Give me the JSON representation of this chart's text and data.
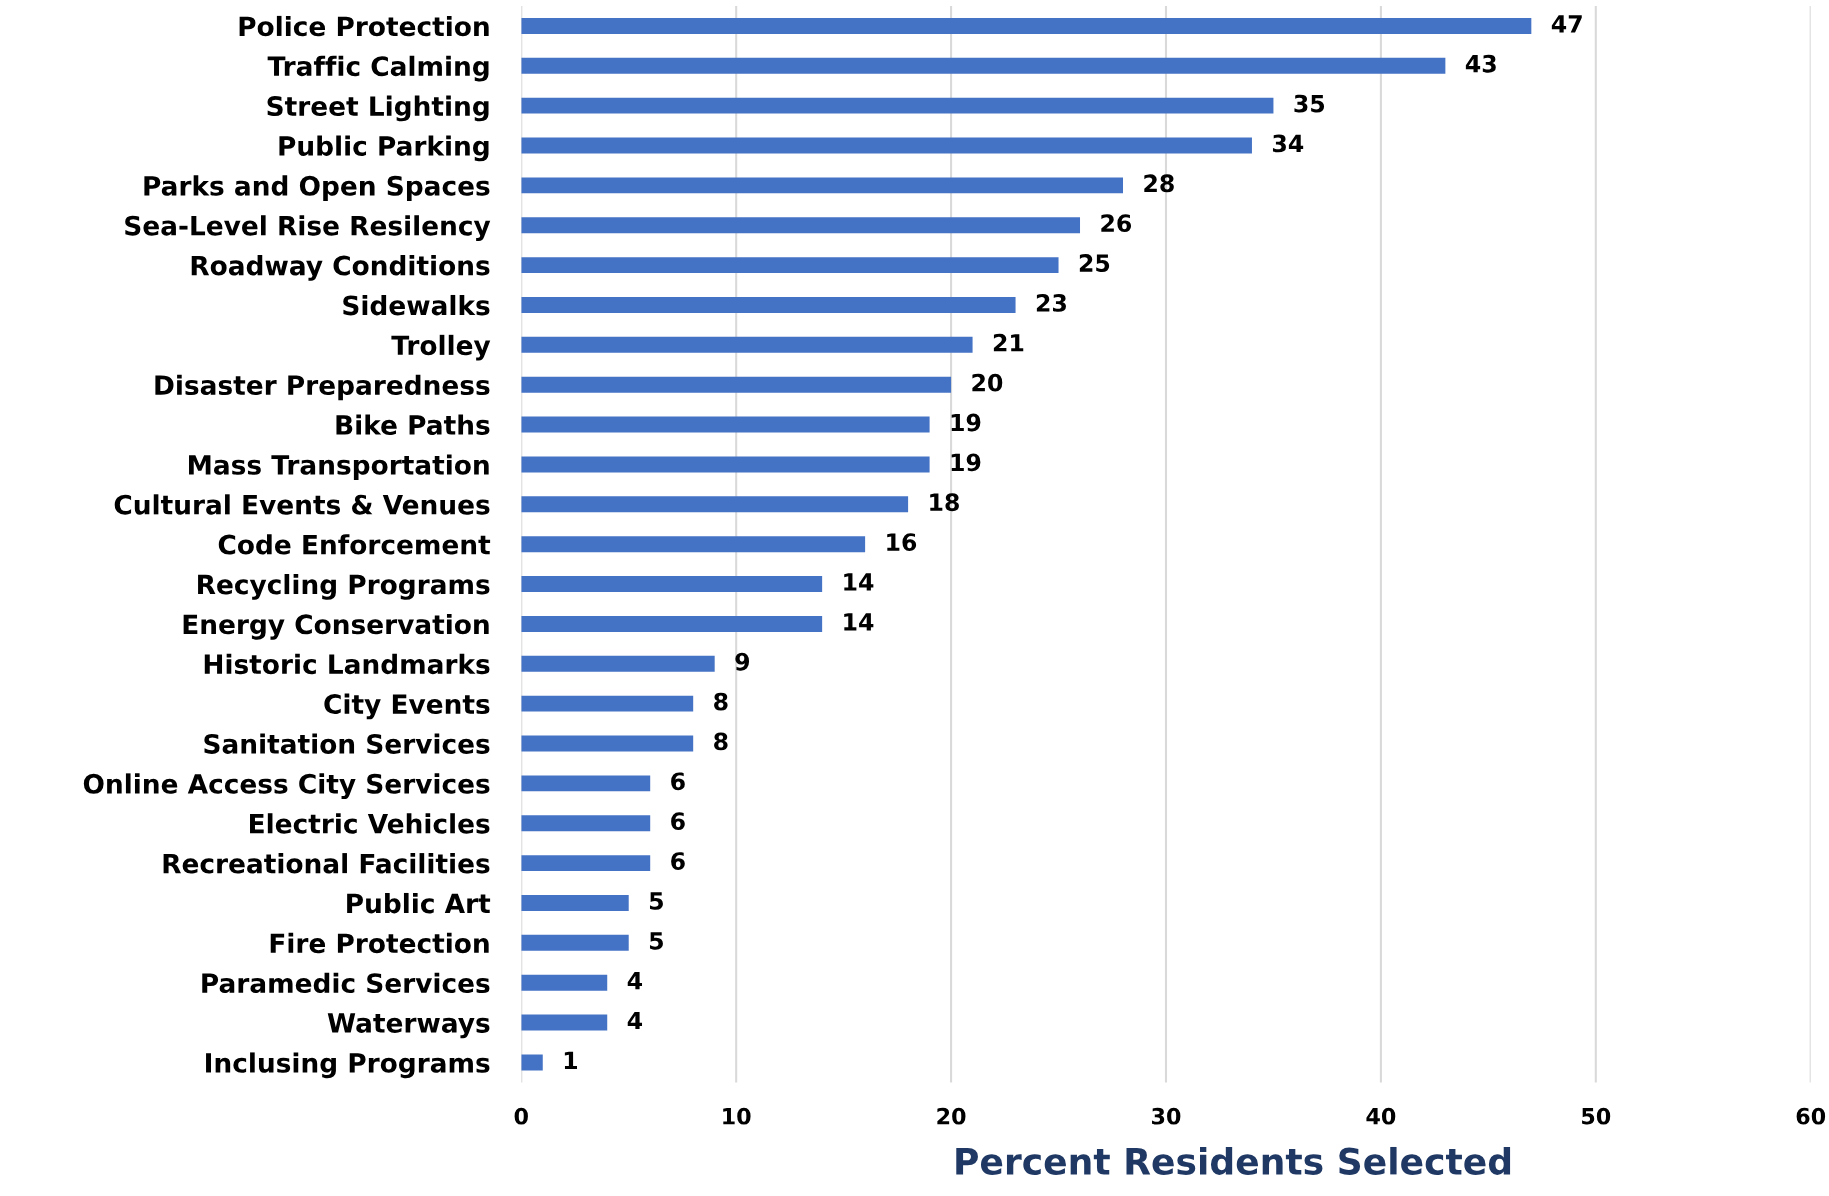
{
  "chart_data": {
    "type": "bar",
    "orientation": "horizontal",
    "xlabel": "Percent Residents Selected",
    "categories": [
      "Police Protection",
      "Traffic Calming",
      "Street Lighting",
      "Public Parking",
      "Parks and Open Spaces",
      "Sea-Level Rise Resilency",
      "Roadway Conditions",
      "Sidewalks",
      "Trolley",
      "Disaster Preparedness",
      "Bike Paths",
      "Mass Transportation",
      "Cultural Events & Venues",
      "Code Enforcement",
      "Recycling Programs",
      "Energy Conservation",
      "Historic Landmarks",
      "City Events",
      "Sanitation Services",
      "Online Access City Services",
      "Electric Vehicles",
      "Recreational Facilities",
      "Public Art",
      "Fire Protection",
      "Paramedic Services",
      "Waterways",
      "Inclusing Programs"
    ],
    "values": [
      47,
      43,
      35,
      34,
      28,
      26,
      25,
      23,
      21,
      20,
      19,
      19,
      18,
      16,
      14,
      14,
      9,
      8,
      8,
      6,
      6,
      6,
      5,
      5,
      4,
      4,
      1
    ],
    "color": "#4472c4",
    "xlim": [
      0,
      60
    ],
    "xticks": [
      0,
      10,
      20,
      30,
      40,
      50,
      60
    ],
    "grid": "x",
    "data_labels": true
  }
}
